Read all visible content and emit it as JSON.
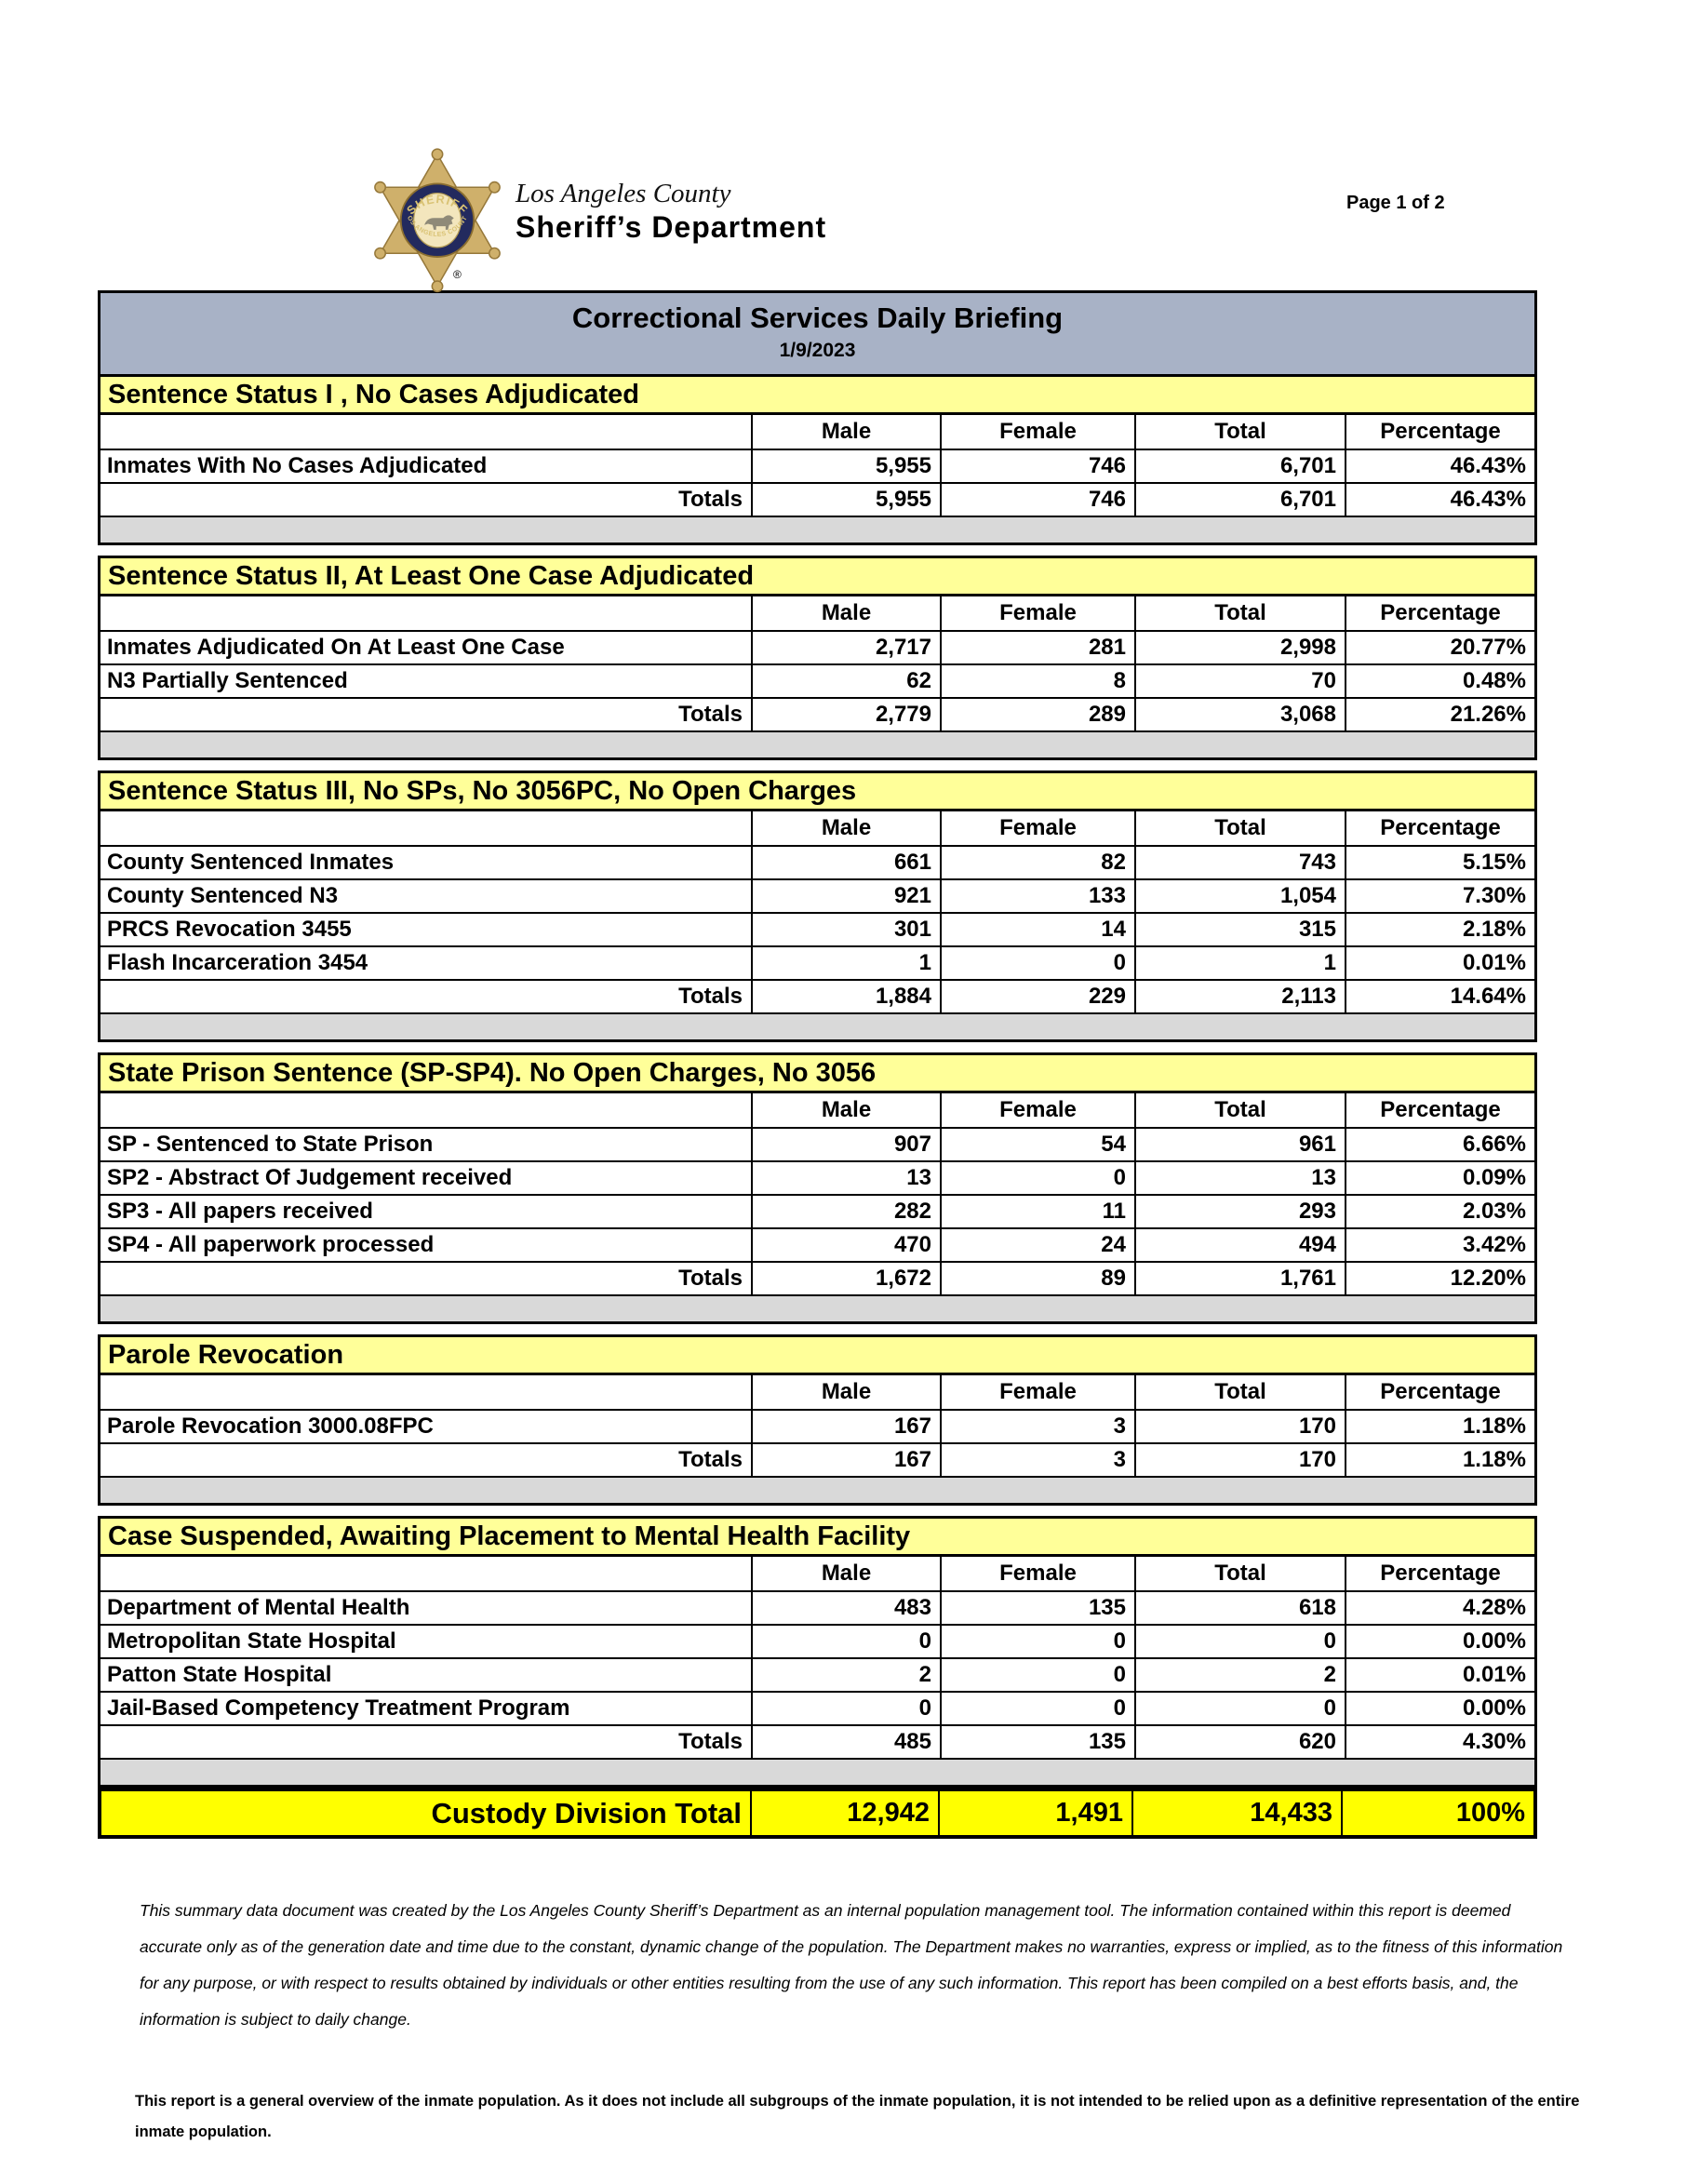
{
  "page": {
    "label": "Page 1 of 2"
  },
  "logo": {
    "line1": "Los Angeles County",
    "line2": "Sheriff’s Department",
    "badge_top": "SHERIFF",
    "badge_bottom": "• LOS ANGELES COUNTY •",
    "reg": "®"
  },
  "title": {
    "heading": "Correctional Services Daily Briefing",
    "date": "1/9/2023"
  },
  "columns": [
    "Male",
    "Female",
    "Total",
    "Percentage"
  ],
  "sections": [
    {
      "title": "Sentence Status I , No Cases Adjudicated",
      "rows": [
        {
          "label": "Inmates With No Cases Adjudicated",
          "values": [
            "5,955",
            "746",
            "6,701",
            "46.43%"
          ]
        }
      ],
      "totals": {
        "label": "Totals",
        "values": [
          "5,955",
          "746",
          "6,701",
          "46.43%"
        ]
      }
    },
    {
      "title": "Sentence Status II, At Least One Case Adjudicated",
      "rows": [
        {
          "label": "Inmates Adjudicated On At Least One Case",
          "values": [
            "2,717",
            "281",
            "2,998",
            "20.77%"
          ]
        },
        {
          "label": "N3 Partially Sentenced",
          "values": [
            "62",
            "8",
            "70",
            "0.48%"
          ]
        }
      ],
      "totals": {
        "label": "Totals",
        "values": [
          "2,779",
          "289",
          "3,068",
          "21.26%"
        ]
      }
    },
    {
      "title": "Sentence Status III, No SPs, No 3056PC, No Open Charges",
      "rows": [
        {
          "label": "County Sentenced Inmates",
          "values": [
            "661",
            "82",
            "743",
            "5.15%"
          ]
        },
        {
          "label": "County Sentenced N3",
          "values": [
            "921",
            "133",
            "1,054",
            "7.30%"
          ]
        },
        {
          "label": "PRCS Revocation 3455",
          "values": [
            "301",
            "14",
            "315",
            "2.18%"
          ]
        },
        {
          "label": "Flash Incarceration 3454",
          "values": [
            "1",
            "0",
            "1",
            "0.01%"
          ]
        }
      ],
      "totals": {
        "label": "Totals",
        "values": [
          "1,884",
          "229",
          "2,113",
          "14.64%"
        ]
      }
    },
    {
      "title": "State Prison Sentence (SP-SP4). No Open Charges, No 3056",
      "rows": [
        {
          "label": "SP - Sentenced to State Prison",
          "values": [
            "907",
            "54",
            "961",
            "6.66%"
          ]
        },
        {
          "label": "SP2 - Abstract Of Judgement received",
          "values": [
            "13",
            "0",
            "13",
            "0.09%"
          ]
        },
        {
          "label": "SP3 - All papers received",
          "values": [
            "282",
            "11",
            "293",
            "2.03%"
          ]
        },
        {
          "label": "SP4 - All paperwork processed",
          "values": [
            "470",
            "24",
            "494",
            "3.42%"
          ]
        }
      ],
      "totals": {
        "label": "Totals",
        "values": [
          "1,672",
          "89",
          "1,761",
          "12.20%"
        ]
      }
    },
    {
      "title": "Parole Revocation",
      "rows": [
        {
          "label": "Parole Revocation 3000.08FPC",
          "values": [
            "167",
            "3",
            "170",
            "1.18%"
          ]
        }
      ],
      "totals": {
        "label": "Totals",
        "values": [
          "167",
          "3",
          "170",
          "1.18%"
        ]
      }
    },
    {
      "title": "Case Suspended, Awaiting Placement to Mental Health Facility",
      "rows": [
        {
          "label": "Department of Mental Health",
          "values": [
            "483",
            "135",
            "618",
            "4.28%"
          ]
        },
        {
          "label": "Metropolitan State Hospital",
          "values": [
            "0",
            "0",
            "0",
            "0.00%"
          ]
        },
        {
          "label": "Patton State Hospital",
          "values": [
            "2",
            "0",
            "2",
            "0.01%"
          ]
        },
        {
          "label": "Jail-Based Competency Treatment Program",
          "values": [
            "0",
            "0",
            "0",
            "0.00%"
          ]
        }
      ],
      "totals": {
        "label": "Totals",
        "values": [
          "485",
          "135",
          "620",
          "4.30%"
        ]
      }
    }
  ],
  "custody_total": {
    "label": "Custody Division Total",
    "values": [
      "12,942",
      "1,491",
      "14,433",
      "100%"
    ]
  },
  "footnotes": {
    "disclaimer": "This summary data document was created by the Los Angeles County Sheriff’s Department as an internal population management tool.  The information contained within this report is deemed accurate only as of the generation date and time due to the constant, dynamic change of the population.  The Department makes no warranties, express or implied, as to the fitness of this information for any purpose, or with respect to results obtained by individuals or other entities resulting from the use of any such information.  This report has been compiled on a best efforts basis, and, the information is subject to daily change.",
    "overview": "This report is a general overview of the inmate population.  As it does not include all subgroups of the inmate population, it is not intended to be relied upon as a definitive representation of the entire inmate population."
  },
  "colors": {
    "title_band": "#a8b2c6",
    "section_band": "#ffff99",
    "column_header": "#d6dcef",
    "header_label_cell": "#b0b0b0",
    "totals_row": "#ccffcc",
    "spacer_row": "#d9d9d9",
    "custody_row": "#ffff00",
    "border": "#000000",
    "badge_gold": "#cfb06b",
    "badge_ring": "#232a5e"
  }
}
